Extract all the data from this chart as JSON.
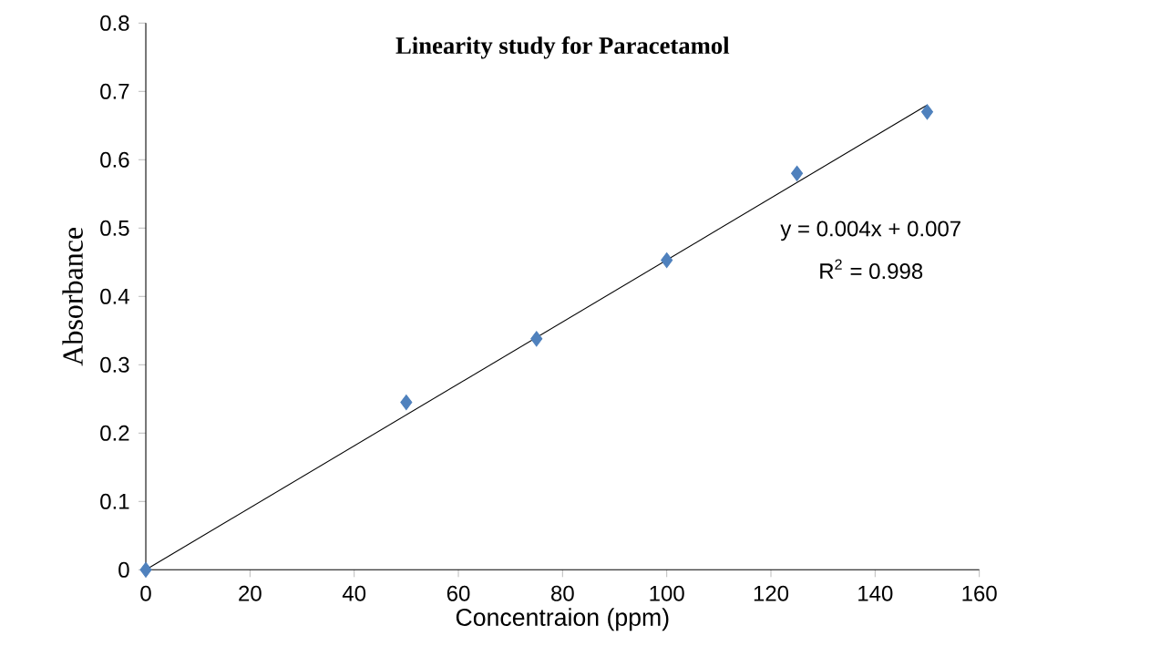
{
  "chart_data": {
    "type": "scatter",
    "title": "Linearity study for Paracetamol",
    "xlabel": "Concentraion (ppm)",
    "ylabel": "Absorbance",
    "x": [
      0,
      50,
      75,
      100,
      125,
      150
    ],
    "series": [
      {
        "color": "#4f81bd",
        "marker": "diamond",
        "values": [
          0,
          0.245,
          0.338,
          0.453,
          0.58,
          0.67
        ]
      },
      {
        "type": "line",
        "color": "#000000",
        "marker": "none",
        "x": [
          0,
          150
        ],
        "values": [
          0.0,
          0.68
        ]
      }
    ],
    "xlim": [
      0,
      160
    ],
    "ylim": [
      0,
      0.8
    ],
    "xticks": [
      0,
      20,
      40,
      60,
      80,
      100,
      120,
      140,
      160
    ],
    "yticks": [
      0,
      0.1,
      0.2,
      0.3,
      0.4,
      0.5,
      0.6,
      0.7,
      0.8
    ],
    "annotations": [
      "y = 0.004x + 0.007",
      "R$^{2}$ = 0.998"
    ]
  }
}
